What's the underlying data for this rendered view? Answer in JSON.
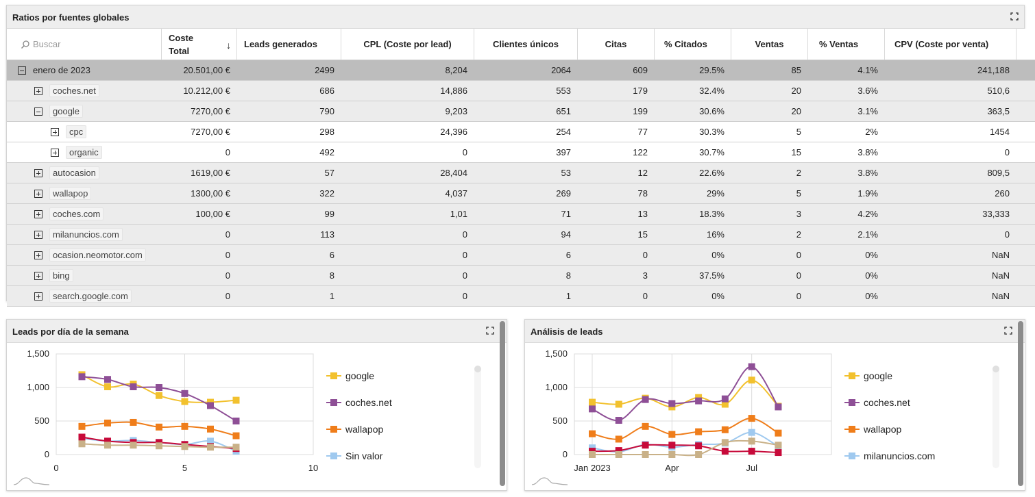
{
  "table_panel": {
    "title": "Ratios por fuentes globales",
    "search_placeholder": "Buscar",
    "columns": [
      "Coste Total",
      "Leads generados",
      "CPL (Coste por lead)",
      "Clientes únicos",
      "Citas",
      "% Citados",
      "Ventas",
      "% Ventas",
      "CPV (Coste por venta)"
    ],
    "column_coste_line1": "Coste",
    "column_coste_line2": "Total",
    "sort_indicator": "↓",
    "rows": [
      {
        "label": "enero de 2023",
        "level": 0,
        "expanded": true,
        "values": [
          "20.501,00 €",
          "2499",
          "8,204",
          "2064",
          "609",
          "29.5%",
          "85",
          "4.1%",
          "241,188"
        ]
      },
      {
        "label": "coches.net",
        "level": 1,
        "expanded": false,
        "values": [
          "10.212,00 €",
          "686",
          "14,886",
          "553",
          "179",
          "32.4%",
          "20",
          "3.6%",
          "510,6"
        ]
      },
      {
        "label": "google",
        "level": 1,
        "expanded": true,
        "values": [
          "7270,00 €",
          "790",
          "9,203",
          "651",
          "199",
          "30.6%",
          "20",
          "3.1%",
          "363,5"
        ]
      },
      {
        "label": "cpc",
        "level": 2,
        "expanded": false,
        "values": [
          "7270,00 €",
          "298",
          "24,396",
          "254",
          "77",
          "30.3%",
          "5",
          "2%",
          "1454"
        ]
      },
      {
        "label": "organic",
        "level": 2,
        "expanded": false,
        "values": [
          "0",
          "492",
          "0",
          "397",
          "122",
          "30.7%",
          "15",
          "3.8%",
          "0"
        ]
      },
      {
        "label": "autocasion",
        "level": 1,
        "expanded": false,
        "values": [
          "1619,00 €",
          "57",
          "28,404",
          "53",
          "12",
          "22.6%",
          "2",
          "3.8%",
          "809,5"
        ]
      },
      {
        "label": "wallapop",
        "level": 1,
        "expanded": false,
        "values": [
          "1300,00 €",
          "322",
          "4,037",
          "269",
          "78",
          "29%",
          "5",
          "1.9%",
          "260"
        ]
      },
      {
        "label": "coches.com",
        "level": 1,
        "expanded": false,
        "values": [
          "100,00 €",
          "99",
          "1,01",
          "71",
          "13",
          "18.3%",
          "3",
          "4.2%",
          "33,333"
        ]
      },
      {
        "label": "milanuncios.com",
        "level": 1,
        "expanded": false,
        "values": [
          "0",
          "113",
          "0",
          "94",
          "15",
          "16%",
          "2",
          "2.1%",
          "0"
        ]
      },
      {
        "label": "ocasion.neomotor.com",
        "level": 1,
        "expanded": false,
        "values": [
          "0",
          "6",
          "0",
          "6",
          "0",
          "0%",
          "0",
          "0%",
          "NaN"
        ]
      },
      {
        "label": "bing",
        "level": 1,
        "expanded": false,
        "values": [
          "0",
          "8",
          "0",
          "8",
          "3",
          "37.5%",
          "0",
          "0%",
          "NaN"
        ]
      },
      {
        "label": "search.google.com",
        "level": 1,
        "expanded": false,
        "values": [
          "0",
          "1",
          "0",
          "1",
          "0",
          "0%",
          "0",
          "0%",
          "NaN"
        ]
      }
    ]
  },
  "weekday_panel": {
    "title": "Leads por día de la semana",
    "legend": [
      "google",
      "coches.net",
      "wallapop",
      "Sin valor"
    ]
  },
  "analysis_panel": {
    "title": "Análisis de leads",
    "legend": [
      "google",
      "coches.net",
      "wallapop",
      "milanuncios.com"
    ]
  },
  "chart_data": [
    {
      "type": "line",
      "title": "Leads por día de la semana",
      "x_ticks": [
        "0",
        "5",
        "10"
      ],
      "xlim": [
        0,
        10
      ],
      "y_ticks": [
        "0",
        "500",
        "1,000",
        "1,500"
      ],
      "ylim": [
        0,
        1500
      ],
      "x": [
        1,
        2,
        3,
        4,
        5,
        6,
        7
      ],
      "grid": true,
      "legend_position": "right",
      "series": [
        {
          "name": "google",
          "color": "#f2c12e",
          "values": [
            1190,
            1010,
            1050,
            880,
            790,
            780,
            810
          ]
        },
        {
          "name": "coches.net",
          "color": "#8e4f96",
          "values": [
            1160,
            1120,
            1010,
            1000,
            910,
            730,
            500
          ]
        },
        {
          "name": "wallapop",
          "color": "#ef7d1a",
          "values": [
            420,
            470,
            480,
            410,
            420,
            380,
            280
          ]
        },
        {
          "name": "Sin valor",
          "color": "#9fc9ef",
          "values": [
            240,
            200,
            210,
            180,
            150,
            200,
            50
          ]
        },
        {
          "color": "#c70a3a",
          "values": [
            260,
            200,
            180,
            180,
            150,
            120,
            90
          ]
        },
        {
          "color": "#c9b188",
          "values": [
            160,
            140,
            140,
            130,
            120,
            110,
            110
          ]
        }
      ]
    },
    {
      "type": "line",
      "title": "Análisis de leads",
      "x_ticks": [
        "Jan 2023",
        "Apr",
        "Jul"
      ],
      "x": [
        "2023-01",
        "2023-02",
        "2023-03",
        "2023-04",
        "2023-05",
        "2023-06",
        "2023-07",
        "2023-08",
        "2023-09"
      ],
      "y_ticks": [
        "0",
        "500",
        "1,000",
        "1,500"
      ],
      "ylim": [
        0,
        1500
      ],
      "grid": true,
      "legend_position": "right",
      "series": [
        {
          "name": "google",
          "color": "#f2c12e",
          "values": [
            780,
            750,
            840,
            710,
            850,
            750,
            1110,
            720,
            null
          ]
        },
        {
          "name": "coches.net",
          "color": "#8e4f96",
          "values": [
            680,
            510,
            820,
            760,
            800,
            830,
            1310,
            710,
            null
          ]
        },
        {
          "name": "wallapop",
          "color": "#ef7d1a",
          "values": [
            310,
            230,
            420,
            300,
            340,
            370,
            540,
            320,
            null
          ]
        },
        {
          "name": "milanuncios.com",
          "color": "#9fc9ef",
          "values": [
            100,
            40,
            150,
            110,
            150,
            170,
            330,
            120,
            null
          ]
        },
        {
          "color": "#c70a3a",
          "values": [
            50,
            60,
            140,
            140,
            130,
            50,
            50,
            30,
            null
          ]
        },
        {
          "color": "#c9b188",
          "values": [
            0,
            0,
            0,
            0,
            0,
            180,
            200,
            140,
            null
          ]
        }
      ]
    }
  ]
}
